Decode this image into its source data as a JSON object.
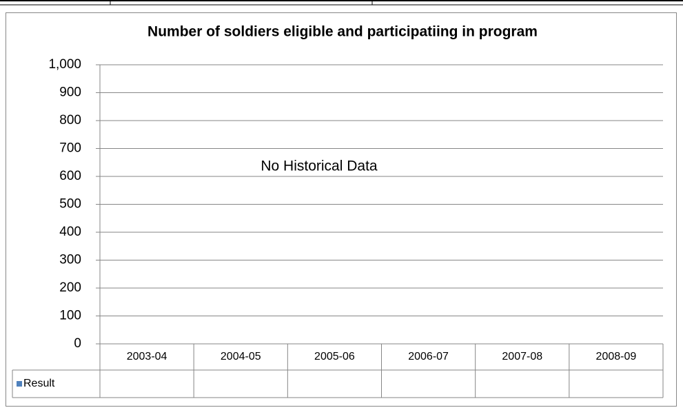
{
  "chart_data": {
    "type": "bar",
    "title": "Number of soldiers eligible and participatiing in program",
    "annotation": "No Historical Data",
    "categories": [
      "2003-04",
      "2004-05",
      "2005-06",
      "2006-07",
      "2007-08",
      "2008-09"
    ],
    "series": [
      {
        "name": "Result",
        "color": "#4f81bd",
        "values": [
          null,
          null,
          null,
          null,
          null,
          null
        ]
      }
    ],
    "ylim": [
      0,
      1000
    ],
    "yticks": [
      0,
      100,
      200,
      300,
      400,
      500,
      600,
      700,
      800,
      900,
      {
        "value": 1000,
        "label": "1,000"
      }
    ],
    "grid": true
  }
}
